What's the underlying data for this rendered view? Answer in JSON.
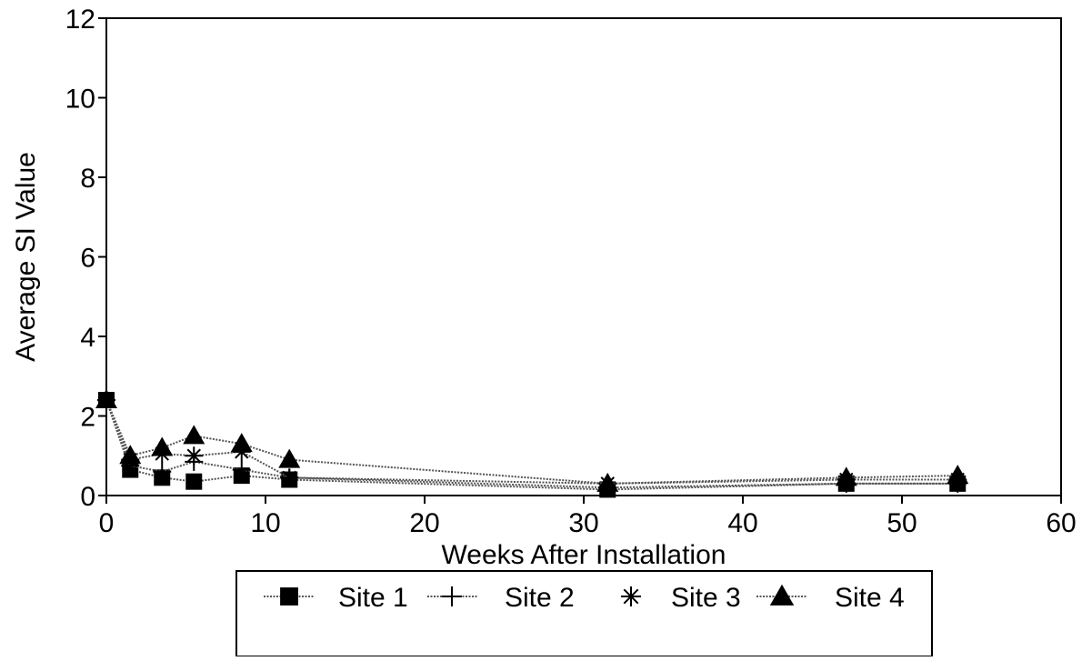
{
  "chart_data": {
    "type": "line",
    "title": "",
    "xlabel": "Weeks After Installation",
    "ylabel": "Average SI Value",
    "xlim": [
      0,
      60
    ],
    "ylim": [
      0,
      12
    ],
    "x_ticks": [
      0,
      10,
      20,
      30,
      40,
      50,
      60
    ],
    "y_ticks": [
      0,
      2,
      4,
      6,
      8,
      10,
      12
    ],
    "x_tick_labels": [
      "0",
      "10",
      "20",
      "30",
      "40",
      "50",
      "60"
    ],
    "y_tick_labels": [
      "0",
      "2",
      "4",
      "6",
      "8",
      "10",
      "12"
    ],
    "grid": false,
    "legend_position": "bottom",
    "x": [
      0,
      1.5,
      3.5,
      5.5,
      8.5,
      11.5,
      31.5,
      46.5,
      53.5
    ],
    "series": [
      {
        "name": "Site 1",
        "marker": "square",
        "values": [
          2.4,
          0.65,
          0.45,
          0.35,
          0.5,
          0.4,
          0.15,
          0.3,
          0.3
        ]
      },
      {
        "name": "Site 2",
        "marker": "plus",
        "values": [
          2.4,
          0.75,
          0.6,
          0.85,
          0.65,
          0.45,
          0.2,
          0.3,
          0.3
        ]
      },
      {
        "name": "Site 3",
        "marker": "asterisk",
        "values": [
          2.4,
          0.9,
          1.05,
          1.0,
          1.1,
          0.45,
          0.3,
          0.4,
          0.4
        ]
      },
      {
        "name": "Site 4",
        "marker": "triangle",
        "values": [
          2.4,
          1.0,
          1.2,
          1.5,
          1.3,
          0.9,
          0.3,
          0.45,
          0.5
        ]
      }
    ]
  }
}
